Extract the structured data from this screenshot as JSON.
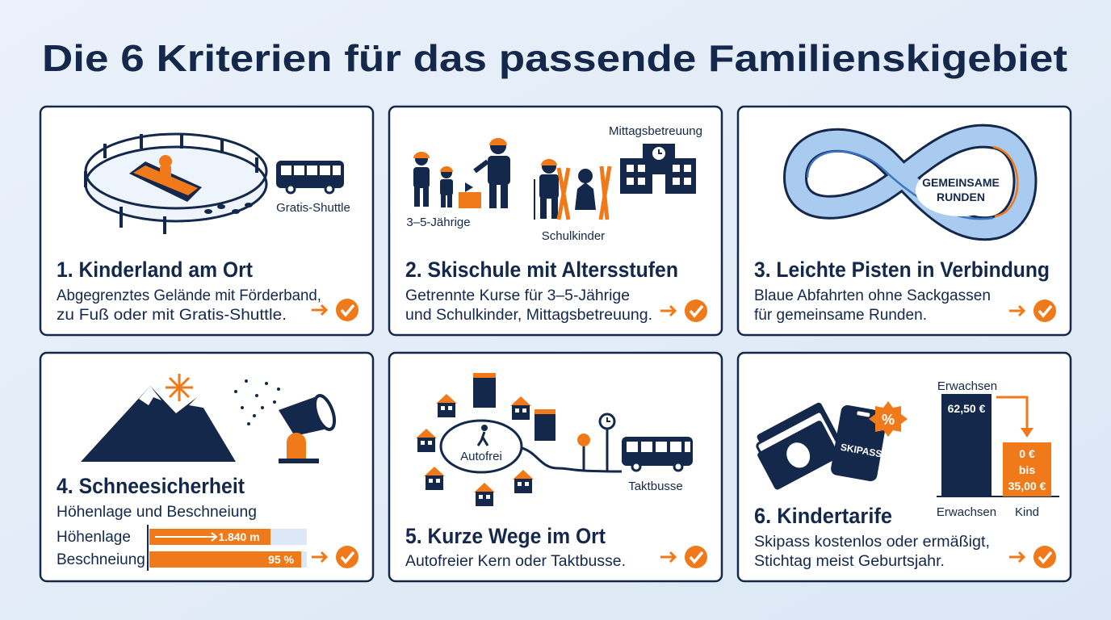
{
  "title": "Die 6 Kriterien für das passende Familienskigebiet",
  "cards": [
    {
      "heading": "1. Kinderland am Ort",
      "description": [
        "Abgegrenztes Gelände mit Förderband,",
        "zu Fuß oder mit Gratis-Shuttle."
      ],
      "labels": [
        "Gratis-Shuttle"
      ]
    },
    {
      "heading": "2. Skischule mit Altersstufen",
      "description": [
        "Getrennte Kurse für 3–5-Jährige",
        "und Schulkinder, Mittagsbetreuung."
      ],
      "labels": [
        "Mittagsbetreuung",
        "3–5-Jährige",
        "Schulkinder"
      ]
    },
    {
      "heading": "3. Leichte Pisten in Verbindung",
      "description": [
        "Blaue Abfahrten ohne Sackgassen",
        "für gemeinsame Runden."
      ],
      "labels": [
        "GEMEINSAME",
        "RUNDEN"
      ]
    },
    {
      "heading": "4. Schneesicherheit",
      "description": [
        "Höhenlage und Beschneiung"
      ],
      "bars": [
        {
          "label": "Höhenlage",
          "value_label": "1.840 m"
        },
        {
          "label": "Beschneiung",
          "value_label": "95 %"
        }
      ]
    },
    {
      "heading": "5. Kurze Wege im Ort",
      "description": [
        "Autofreier Kern oder Taktbusse."
      ],
      "labels": [
        "Autofrei",
        "Taktbusse"
      ]
    },
    {
      "heading": "6. Kindertarife",
      "description": [
        "Skipass kostenlos oder ermäßigt,",
        "Stichtag meist Geburtsjahr."
      ],
      "labels": [
        "SKIPASS",
        "%"
      ],
      "price_chart": {
        "top_label": "Erwachsen",
        "adult": "62,50 €",
        "child": [
          "0 €",
          "bis",
          "35,00 €"
        ],
        "x_labels": [
          "Erwachsen",
          "Kind"
        ]
      }
    }
  ]
}
